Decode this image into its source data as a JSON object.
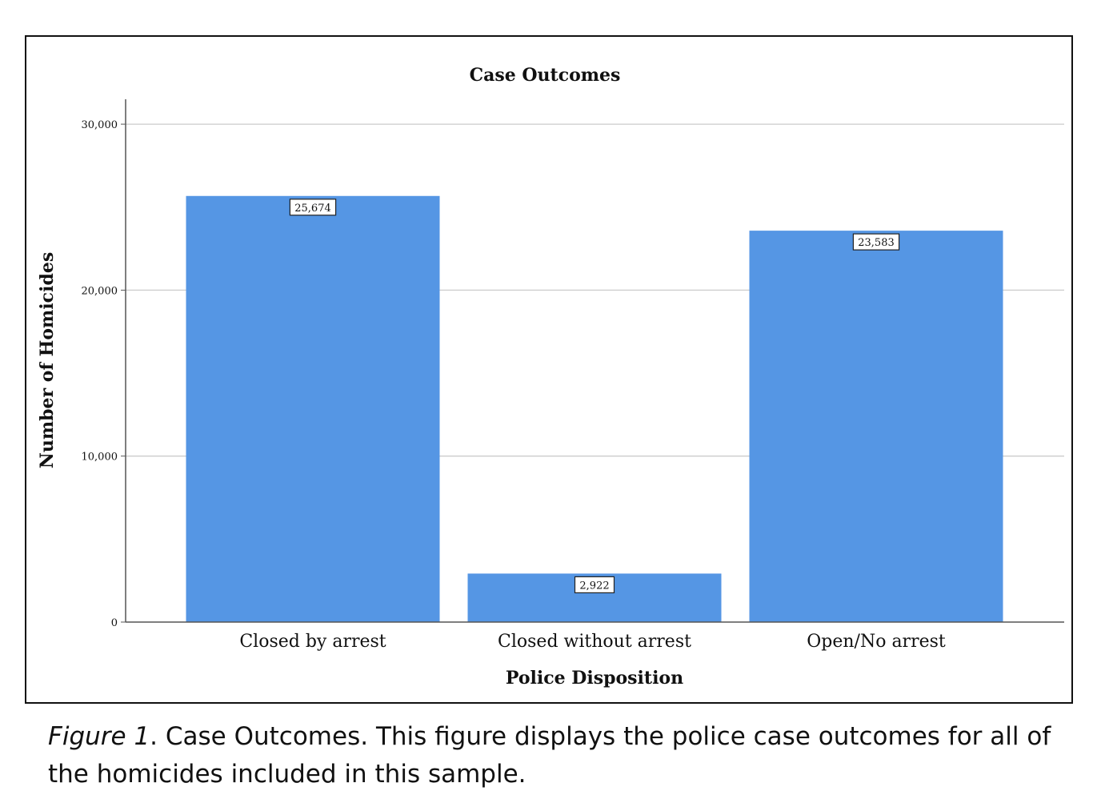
{
  "chart_data": {
    "type": "bar",
    "title": "Case Outcomes",
    "xlabel": "Police Disposition",
    "ylabel": "Number of Homicides",
    "categories": [
      "Closed by arrest",
      "Closed without arrest",
      "Open/No arrest"
    ],
    "values": [
      25674,
      2922,
      23583
    ],
    "value_labels": [
      "25,674",
      "2,922",
      "23,583"
    ],
    "ylim": [
      0,
      31500
    ],
    "yticks": [
      0,
      10000,
      20000,
      30000
    ],
    "ytick_labels": [
      "0",
      "10,000",
      "20,000",
      "30,000"
    ],
    "grid": true,
    "bar_color": "#5596e4",
    "grid_color": "#cccccc"
  },
  "caption": {
    "label": "Figure 1",
    "text": ". Case Outcomes. This figure displays the police case outcomes for all of the homicides included in this sample."
  }
}
